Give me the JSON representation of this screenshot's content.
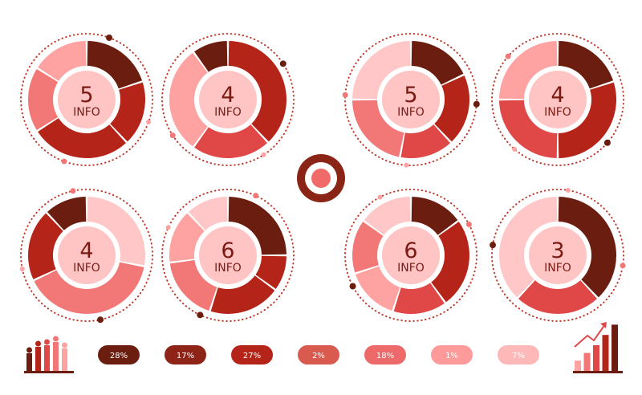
{
  "colors": {
    "palette": [
      "#6b1d10",
      "#b52418",
      "#e04848",
      "#f27878",
      "#ffa2a2",
      "#ffc7c7"
    ],
    "hub": "#ffc4c4",
    "text": "#7a1a12",
    "dots": "#c0392b"
  },
  "chart_data": [
    {
      "type": "donut",
      "center_number": "5",
      "center_label": "INFO",
      "colors": [
        "#6b1d10",
        "#b52418",
        "#b52418",
        "#f27878",
        "#ffa2a2"
      ],
      "values": [
        20,
        18,
        28,
        18,
        16
      ],
      "start_deg": 0
    },
    {
      "type": "donut",
      "center_number": "4",
      "center_label": "INFO",
      "colors": [
        "#b52418",
        "#e04848",
        "#ffa2a2",
        "#6b1d10"
      ],
      "values": [
        38,
        22,
        30,
        10
      ],
      "start_deg": 0
    },
    {
      "type": "donut",
      "center_number": "5",
      "center_label": "INFO",
      "colors": [
        "#6b1d10",
        "#b52418",
        "#e04848",
        "#f27878",
        "#ffc7c7"
      ],
      "values": [
        18,
        20,
        15,
        22,
        25
      ],
      "start_deg": 0
    },
    {
      "type": "donut",
      "center_number": "4",
      "center_label": "INFO",
      "colors": [
        "#6b1d10",
        "#b52418",
        "#e04848",
        "#ffa2a2"
      ],
      "values": [
        20,
        30,
        25,
        25
      ],
      "start_deg": 0
    },
    {
      "type": "donut",
      "center_number": "4",
      "center_label": "INFO",
      "colors": [
        "#ffc7c7",
        "#f27878",
        "#b52418",
        "#6b1d10"
      ],
      "values": [
        28,
        40,
        20,
        12
      ],
      "start_deg": 0
    },
    {
      "type": "donut",
      "center_number": "6",
      "center_label": "INFO",
      "colors": [
        "#6b1d10",
        "#b52418",
        "#b52418",
        "#f27878",
        "#ffa2a2",
        "#ffc7c7"
      ],
      "values": [
        25,
        10,
        20,
        18,
        15,
        12
      ],
      "start_deg": 0
    },
    {
      "type": "donut",
      "center_number": "6",
      "center_label": "INFO",
      "colors": [
        "#6b1d10",
        "#b52418",
        "#e04848",
        "#ffa2a2",
        "#f27878",
        "#ffc7c7"
      ],
      "values": [
        15,
        25,
        15,
        15,
        15,
        15
      ],
      "start_deg": 0
    },
    {
      "type": "donut",
      "center_number": "3",
      "center_label": "INFO",
      "colors": [
        "#6b1d10",
        "#e04848",
        "#ffc7c7"
      ],
      "values": [
        38,
        24,
        38
      ],
      "start_deg": 0
    }
  ],
  "percent_pills": [
    {
      "label": "28%",
      "color": "#6b1d10"
    },
    {
      "label": "17%",
      "color": "#8e2418"
    },
    {
      "label": "27%",
      "color": "#b52418"
    },
    {
      "label": "2%",
      "color": "#d95a4e"
    },
    {
      "label": "18%",
      "color": "#ee6a6a"
    },
    {
      "label": "1%",
      "color": "#ff9a9a"
    },
    {
      "label": "7%",
      "color": "#ffb8b8"
    }
  ],
  "left_bars": {
    "values": [
      0.55,
      0.75,
      0.8,
      0.9,
      0.7
    ],
    "colors": [
      "#6b1d10",
      "#b52418",
      "#e04848",
      "#f27878",
      "#ffa2a2"
    ]
  },
  "right_bars": {
    "values": [
      0.2,
      0.35,
      0.5,
      0.7,
      0.9
    ],
    "colors": [
      "#ffa2a2",
      "#f27878",
      "#e04848",
      "#b52418",
      "#6b1d10"
    ]
  }
}
